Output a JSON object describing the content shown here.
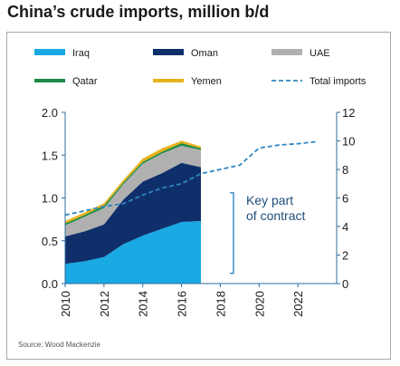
{
  "header": {
    "title": "China’s crude imports, million b/d"
  },
  "colors": {
    "Iraq": "#19a9e3",
    "Oman": "#0f2f6b",
    "UAE": "#b0b0b0",
    "Qatar": "#1a8a45",
    "Yemen": "#e8b21c",
    "Total imports": "#2e86c1",
    "axis": "#2f6c9e",
    "annotation": "#2e86c1"
  },
  "chart_data": {
    "type": "area",
    "xlim": [
      2010,
      2024
    ],
    "x_ticks": [
      2010,
      2012,
      2014,
      2016,
      2018,
      2020,
      2022
    ],
    "x_tick_labels": [
      "2010",
      "2012",
      "2014",
      "2016",
      "2018",
      "2020",
      "2022"
    ],
    "left_axis": {
      "ylim": [
        0,
        2.0
      ],
      "ticks": [
        0.0,
        0.5,
        1.0,
        1.5,
        2.0
      ],
      "tick_labels": [
        "0.0",
        "0.5",
        "1.0",
        "1.5",
        "2.0"
      ]
    },
    "right_axis": {
      "ylim": [
        0,
        12
      ],
      "ticks": [
        0,
        2,
        4,
        6,
        8,
        10,
        12
      ],
      "tick_labels": [
        "0",
        "2",
        "4",
        "6",
        "8",
        "10",
        "12"
      ]
    },
    "x": [
      2010,
      2011,
      2012,
      2013,
      2014,
      2015,
      2016,
      2017
    ],
    "series": [
      {
        "name": "Iraq",
        "axis": "left",
        "stacked": true,
        "values": [
          0.23,
          0.26,
          0.31,
          0.46,
          0.56,
          0.64,
          0.72,
          0.73
        ]
      },
      {
        "name": "Oman",
        "axis": "left",
        "stacked": true,
        "values": [
          0.32,
          0.35,
          0.38,
          0.52,
          0.63,
          0.65,
          0.69,
          0.63
        ]
      },
      {
        "name": "UAE",
        "axis": "left",
        "stacked": true,
        "values": [
          0.13,
          0.17,
          0.19,
          0.18,
          0.21,
          0.23,
          0.2,
          0.2
        ]
      },
      {
        "name": "Qatar",
        "axis": "left",
        "stacked": true,
        "values": [
          0.02,
          0.02,
          0.03,
          0.02,
          0.02,
          0.02,
          0.03,
          0.02
        ]
      },
      {
        "name": "Yemen",
        "axis": "left",
        "stacked": true,
        "values": [
          0.03,
          0.03,
          0.03,
          0.03,
          0.04,
          0.04,
          0.03,
          0.02
        ]
      },
      {
        "name": "Total imports",
        "axis": "right",
        "type": "line",
        "style": "dashed",
        "x": [
          2010,
          2011,
          2012,
          2013,
          2014,
          2015,
          2016,
          2017,
          2018,
          2019,
          2020,
          2021,
          2022,
          2023
        ],
        "values": [
          4.8,
          5.1,
          5.4,
          5.6,
          6.2,
          6.7,
          7.0,
          7.7,
          8.0,
          8.3,
          9.5,
          9.7,
          9.8,
          9.95
        ]
      }
    ],
    "legend": {
      "placement": "top",
      "entries": [
        {
          "label": "Iraq",
          "kind": "swatch"
        },
        {
          "label": "Oman",
          "kind": "swatch"
        },
        {
          "label": "UAE",
          "kind": "swatch"
        },
        {
          "label": "Qatar",
          "kind": "line"
        },
        {
          "label": "Yemen",
          "kind": "line"
        },
        {
          "label": "Total imports",
          "kind": "dashed"
        }
      ]
    },
    "annotation": {
      "text_lines": [
        "Key part",
        "of contract"
      ],
      "x_from": 2017,
      "y_from": 0.12,
      "y_to": 1.06
    },
    "source": "Source: Wood Mackenzie",
    "grid": false
  }
}
